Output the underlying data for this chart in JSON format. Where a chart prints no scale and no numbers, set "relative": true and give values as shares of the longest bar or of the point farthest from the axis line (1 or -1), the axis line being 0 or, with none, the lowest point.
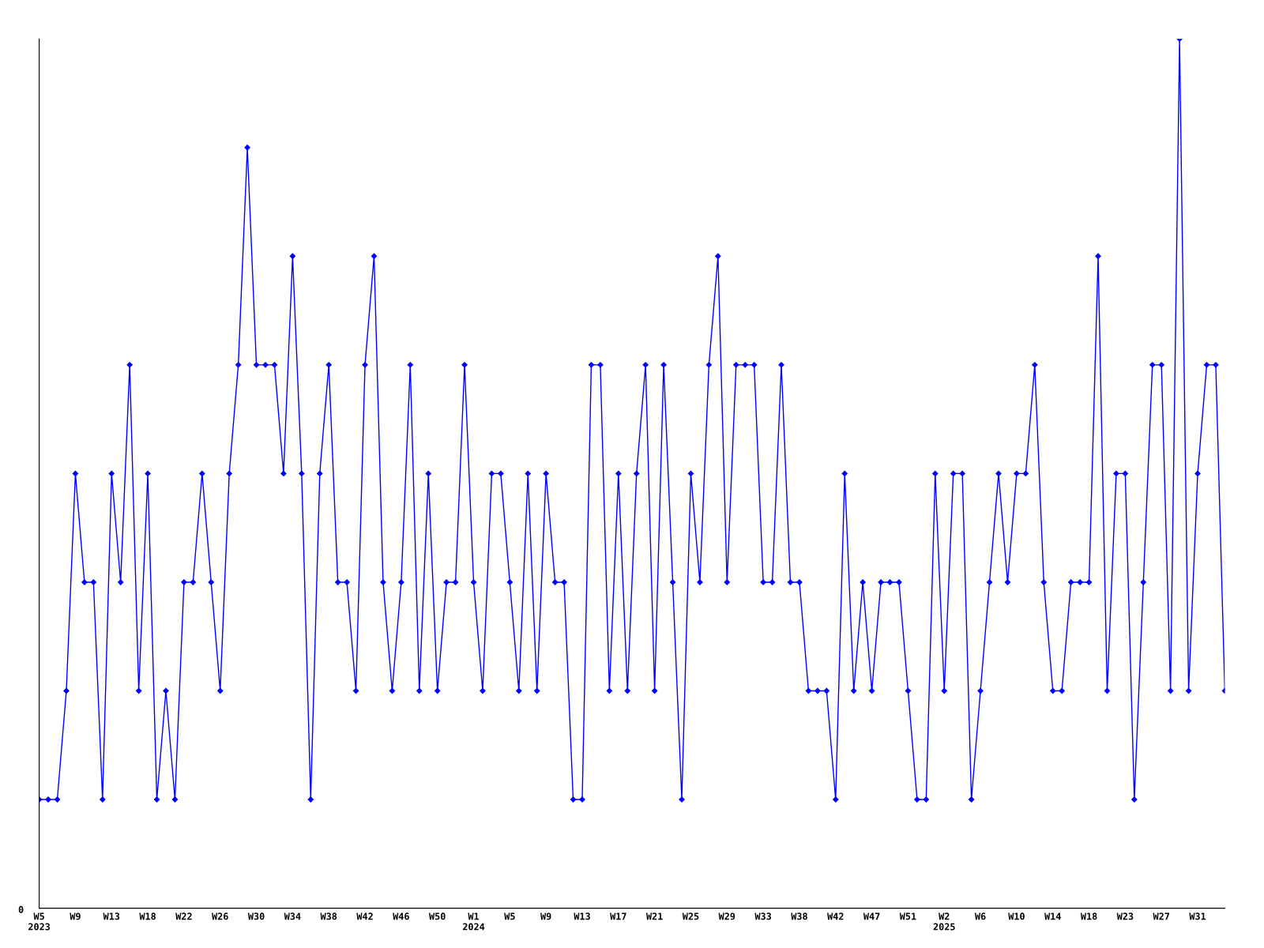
{
  "chart_data": {
    "type": "line",
    "relative": true,
    "marker": "diamond",
    "line_style": "solid",
    "grid": false,
    "legend": false,
    "categories": [
      "W5\n2023",
      null,
      null,
      null,
      "W9",
      null,
      null,
      null,
      "W13",
      null,
      null,
      null,
      "W18",
      null,
      null,
      null,
      "W22",
      null,
      null,
      null,
      "W26",
      null,
      null,
      null,
      "W30",
      null,
      null,
      null,
      "W34",
      null,
      null,
      null,
      "W38",
      null,
      null,
      null,
      "W42",
      null,
      null,
      null,
      "W46",
      null,
      null,
      null,
      "W50",
      null,
      null,
      null,
      "W1\n2024",
      null,
      null,
      null,
      "W5",
      null,
      null,
      null,
      "W9",
      null,
      null,
      null,
      "W13",
      null,
      null,
      null,
      "W17",
      null,
      null,
      null,
      "W21",
      null,
      null,
      null,
      "W25",
      null,
      null,
      null,
      "W29",
      null,
      null,
      null,
      "W33",
      null,
      null,
      null,
      "W38",
      null,
      null,
      null,
      "W42",
      null,
      null,
      null,
      "W47",
      null,
      null,
      null,
      "W51",
      null,
      null,
      null,
      "W2\n2025",
      null,
      null,
      null,
      "W6",
      null,
      null,
      null,
      "W10",
      null,
      null,
      null,
      "W14",
      null,
      null,
      null,
      "W18",
      null,
      null,
      null,
      "W23",
      null,
      null,
      null,
      "W27",
      null,
      null,
      null,
      "W31",
      null,
      null,
      null
    ],
    "series": [
      {
        "color": "#0000ff",
        "values": [
          0.125,
          0.125,
          0.125,
          0.25,
          0.5,
          0.375,
          0.375,
          0.125,
          0.5,
          0.375,
          0.625,
          0.25,
          0.5,
          0.125,
          0.25,
          0.125,
          0.375,
          0.375,
          0.5,
          0.375,
          0.25,
          0.5,
          0.625,
          0.875,
          0.625,
          0.625,
          0.625,
          0.5,
          0.75,
          0.5,
          0.125,
          0.5,
          0.625,
          0.375,
          0.375,
          0.25,
          0.625,
          0.75,
          0.375,
          0.25,
          0.375,
          0.625,
          0.25,
          0.5,
          0.25,
          0.375,
          0.375,
          0.625,
          0.375,
          0.25,
          0.5,
          0.5,
          0.375,
          0.25,
          0.5,
          0.25,
          0.5,
          0.375,
          0.375,
          0.125,
          0.125,
          0.625,
          0.625,
          0.25,
          0.5,
          0.25,
          0.5,
          0.625,
          0.25,
          0.625,
          0.375,
          0.125,
          0.5,
          0.375,
          0.625,
          0.75,
          0.375,
          0.625,
          0.625,
          0.625,
          0.375,
          0.375,
          0.625,
          0.375,
          0.375,
          0.25,
          0.25,
          0.25,
          0.125,
          0.5,
          0.25,
          0.375,
          0.25,
          0.375,
          0.375,
          0.375,
          0.25,
          0.125,
          0.125,
          0.5,
          0.25,
          0.5,
          0.5,
          0.125,
          0.25,
          0.375,
          0.5,
          0.375,
          0.5,
          0.5,
          0.625,
          0.375,
          0.25,
          0.25,
          0.375,
          0.375,
          0.375,
          0.75,
          0.25,
          0.5,
          0.5,
          0.125,
          0.375,
          0.625,
          0.625,
          0.25,
          1,
          0.25,
          0.5,
          0.625,
          0.625,
          0.25
        ]
      }
    ],
    "annotations": [
      "0"
    ]
  }
}
